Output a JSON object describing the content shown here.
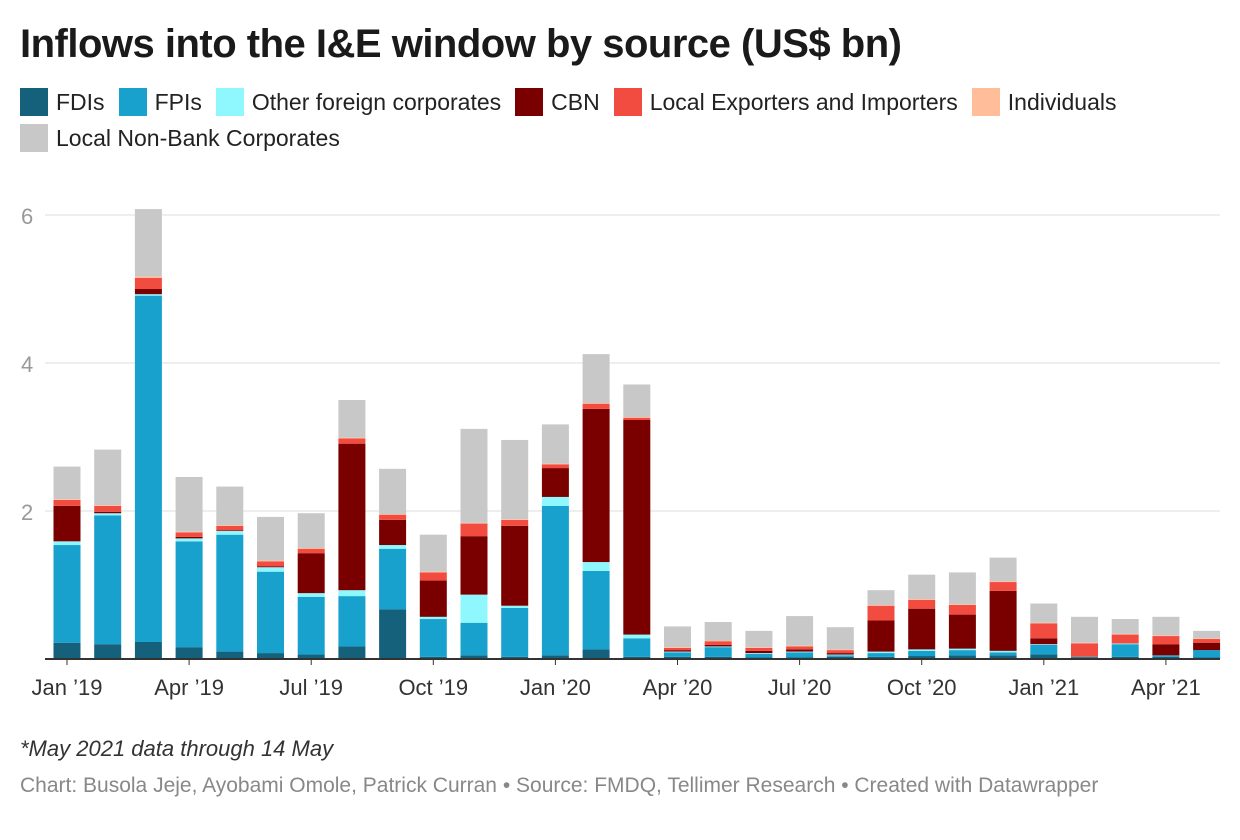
{
  "title": "Inflows into the I&E window by source (US$ bn)",
  "footnote": "*May 2021 data through 14 May",
  "credit": "Chart: Busola Jeje, Ayobami Omole, Patrick Curran • Source: FMDQ, Tellimer Research • Created with Datawrapper",
  "colors": {
    "grid": "#dddddd",
    "axis": "#333333",
    "tick_text": "#999999",
    "xtick_text": "#333333"
  },
  "chart_data": {
    "type": "bar",
    "stacked": true,
    "title": "Inflows into the I&E window by source (US$ bn)",
    "ylim": [
      0,
      6
    ],
    "yticks": [
      2,
      4,
      6
    ],
    "grid": true,
    "legend_position": "top",
    "categories": [
      "Jan 2019",
      "Feb 2019",
      "Mar 2019",
      "Apr 2019",
      "May 2019",
      "Jun 2019",
      "Jul 2019",
      "Aug 2019",
      "Sep 2019",
      "Oct 2019",
      "Nov 2019",
      "Dec 2019",
      "Jan 2020",
      "Feb 2020",
      "Mar 2020",
      "Apr 2020",
      "May 2020",
      "Jun 2020",
      "Jul 2020",
      "Aug 2020",
      "Sep 2020",
      "Oct 2020",
      "Nov 2020",
      "Dec 2020",
      "Jan 2021",
      "Feb 2021",
      "Mar 2021",
      "Apr 2021",
      "May 2021"
    ],
    "xtick_labels": [
      {
        "index": 0,
        "label": "Jan ’19"
      },
      {
        "index": 3,
        "label": "Apr ’19"
      },
      {
        "index": 6,
        "label": "Jul ’19"
      },
      {
        "index": 9,
        "label": "Oct ’19"
      },
      {
        "index": 12,
        "label": "Jan ’20"
      },
      {
        "index": 15,
        "label": "Apr ’20"
      },
      {
        "index": 18,
        "label": "Jul ’20"
      },
      {
        "index": 21,
        "label": "Oct ’20"
      },
      {
        "index": 24,
        "label": "Jan ’21"
      },
      {
        "index": 27,
        "label": "Apr ’21"
      }
    ],
    "series": [
      {
        "name": "FDIs",
        "color": "#15607a",
        "values": [
          0.22,
          0.2,
          0.23,
          0.16,
          0.1,
          0.08,
          0.06,
          0.17,
          0.67,
          0.03,
          0.05,
          0.03,
          0.05,
          0.13,
          0.03,
          0.03,
          0.03,
          0.02,
          0.02,
          0.03,
          0.03,
          0.04,
          0.05,
          0.05,
          0.06,
          0.02,
          0.03,
          0.03,
          0.02
        ]
      },
      {
        "name": "FPIs",
        "color": "#18a1cd",
        "values": [
          1.32,
          1.74,
          4.68,
          1.43,
          1.58,
          1.1,
          0.78,
          0.68,
          0.82,
          0.51,
          0.44,
          0.66,
          2.02,
          1.06,
          0.25,
          0.06,
          0.13,
          0.05,
          0.07,
          0.02,
          0.05,
          0.07,
          0.07,
          0.04,
          0.13,
          0.01,
          0.17,
          0.02,
          0.1
        ]
      },
      {
        "name": "Other foreign corporates",
        "color": "#8ff8ff",
        "values": [
          0.05,
          0.03,
          0.02,
          0.04,
          0.05,
          0.06,
          0.05,
          0.08,
          0.05,
          0.03,
          0.38,
          0.03,
          0.12,
          0.12,
          0.05,
          0.01,
          0.01,
          0.01,
          0.01,
          0.01,
          0.02,
          0.02,
          0.02,
          0.02,
          0.01,
          0.0,
          0.01,
          0.0,
          0.0
        ]
      },
      {
        "name": "CBN",
        "color": "#7a0000",
        "values": [
          0.48,
          0.02,
          0.07,
          0.02,
          0.01,
          0.01,
          0.54,
          1.98,
          0.34,
          0.49,
          0.79,
          1.08,
          0.39,
          2.07,
          2.9,
          0.02,
          0.02,
          0.03,
          0.03,
          0.02,
          0.42,
          0.55,
          0.46,
          0.81,
          0.08,
          0.0,
          0.0,
          0.15,
          0.1
        ]
      },
      {
        "name": "Local Exporters and Importers",
        "color": "#f24b40",
        "values": [
          0.08,
          0.08,
          0.15,
          0.06,
          0.06,
          0.07,
          0.06,
          0.07,
          0.07,
          0.11,
          0.17,
          0.08,
          0.05,
          0.07,
          0.03,
          0.03,
          0.05,
          0.04,
          0.04,
          0.04,
          0.2,
          0.12,
          0.13,
          0.12,
          0.2,
          0.18,
          0.12,
          0.11,
          0.05
        ]
      },
      {
        "name": "Individuals",
        "color": "#ffbd99",
        "values": [
          0.01,
          0.01,
          0.02,
          0.01,
          0.01,
          0.01,
          0.01,
          0.01,
          0.01,
          0.01,
          0.01,
          0.01,
          0.01,
          0.01,
          0.01,
          0.01,
          0.01,
          0.01,
          0.01,
          0.01,
          0.01,
          0.01,
          0.01,
          0.01,
          0.01,
          0.01,
          0.01,
          0.01,
          0.01
        ]
      },
      {
        "name": "Local Non-Bank Corporates",
        "color": "#c8c8c8",
        "values": [
          0.44,
          0.75,
          0.91,
          0.74,
          0.52,
          0.59,
          0.47,
          0.51,
          0.61,
          0.5,
          1.27,
          1.07,
          0.53,
          0.66,
          0.44,
          0.28,
          0.25,
          0.22,
          0.4,
          0.3,
          0.2,
          0.33,
          0.43,
          0.32,
          0.26,
          0.35,
          0.2,
          0.25,
          0.1
        ]
      }
    ]
  }
}
